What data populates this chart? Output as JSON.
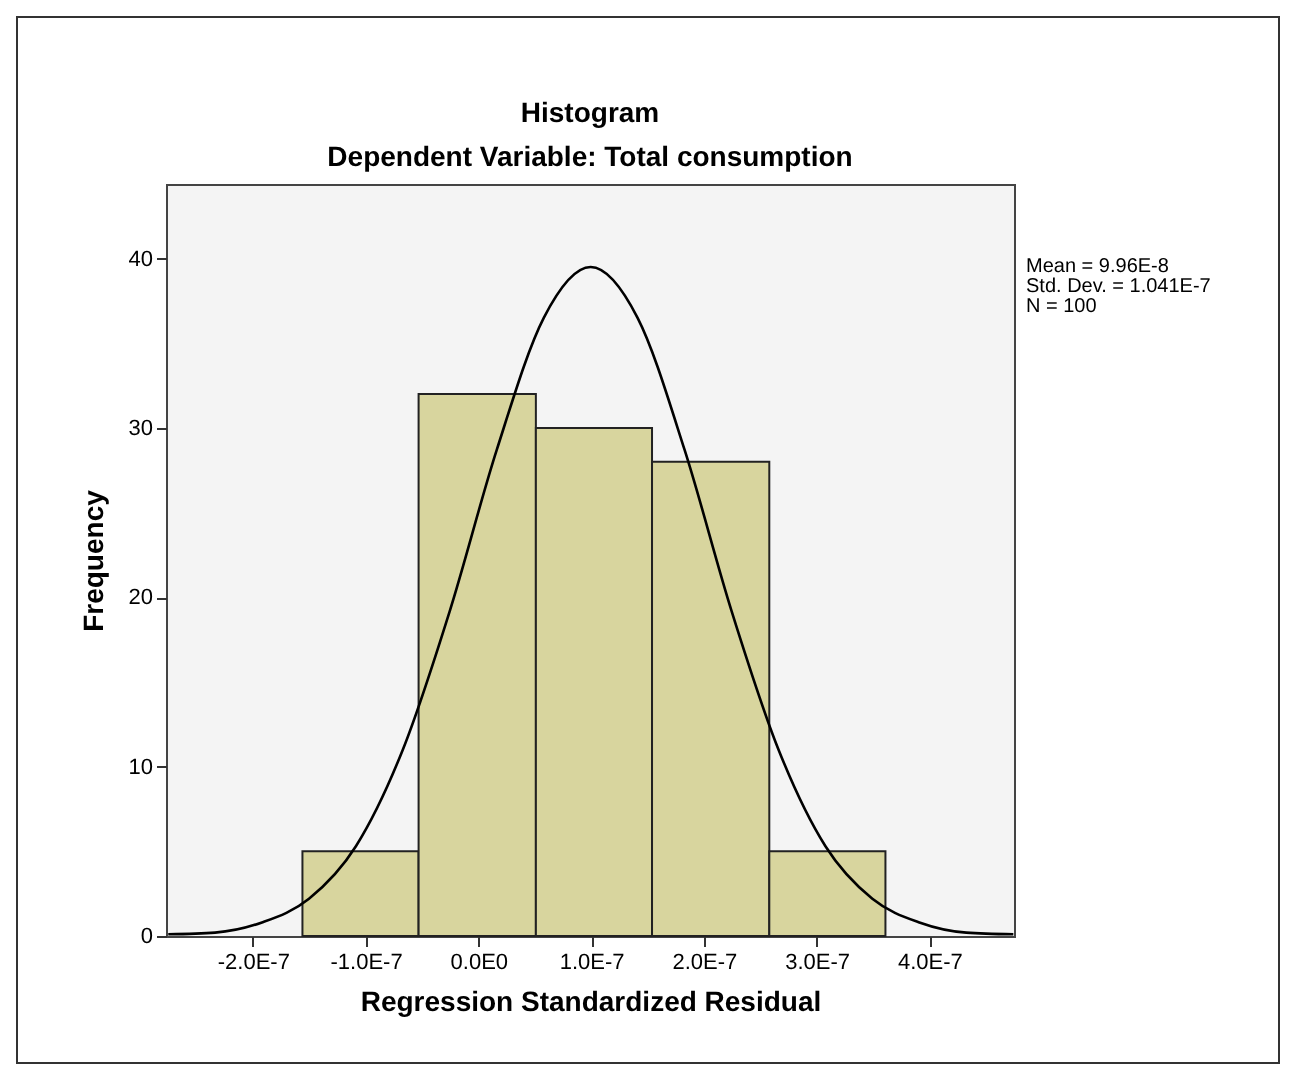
{
  "chart_data": {
    "type": "histogram",
    "title": "Histogram",
    "subtitle": "Dependent Variable: Total consumption",
    "xlabel": "Regression Standardized Residual",
    "ylabel": "Frequency",
    "bins": [
      -1.56e-07,
      -5.3e-08,
      5.1e-08,
      1.54e-07,
      2.58e-07,
      3.61e-07
    ],
    "values": [
      5,
      32,
      30,
      28,
      5
    ],
    "color": "#d8d59e",
    "series": [
      {
        "type": "line",
        "color": "#000000",
        "x": [
          -2.75e-07,
          -2.335e-07,
          -1.919e-07,
          -1.502e-07,
          -1.086e-07,
          -6.7e-08,
          -2.53e-08,
          1.63e-08,
          5.8e-08,
          9.96e-08,
          1.412e-07,
          1.829e-07,
          2.245e-07,
          2.662e-07,
          3.078e-07,
          3.494e-07,
          3.911e-07,
          4.327e-07,
          4.744e-07
        ],
        "values": [
          0.1,
          0.2,
          0.8,
          2.2,
          5.3,
          11.0,
          19.2,
          28.7,
          36.5,
          39.5,
          36.5,
          28.7,
          19.2,
          11.0,
          5.3,
          2.2,
          0.8,
          0.2,
          0.1
        ]
      }
    ],
    "xlim": [
      -2.77e-07,
      4.75e-07
    ],
    "xticks": [
      {
        "value": -2e-07,
        "label": "-2.0E-7"
      },
      {
        "value": -1e-07,
        "label": "-1.0E-7"
      },
      {
        "value": 0,
        "label": "0.0E0"
      },
      {
        "value": 1e-07,
        "label": "1.0E-7"
      },
      {
        "value": 2e-07,
        "label": "2.0E-7"
      },
      {
        "value": 3e-07,
        "label": "3.0E-7"
      },
      {
        "value": 4e-07,
        "label": "4.0E-7"
      }
    ],
    "ylim": [
      0,
      44.4
    ],
    "yticks": [
      0,
      10,
      20,
      30,
      40
    ],
    "grid": false,
    "annotations": [
      "Mean = 9.96E-8",
      "Std. Dev. = 1.041E-7",
      "N = 100"
    ]
  }
}
